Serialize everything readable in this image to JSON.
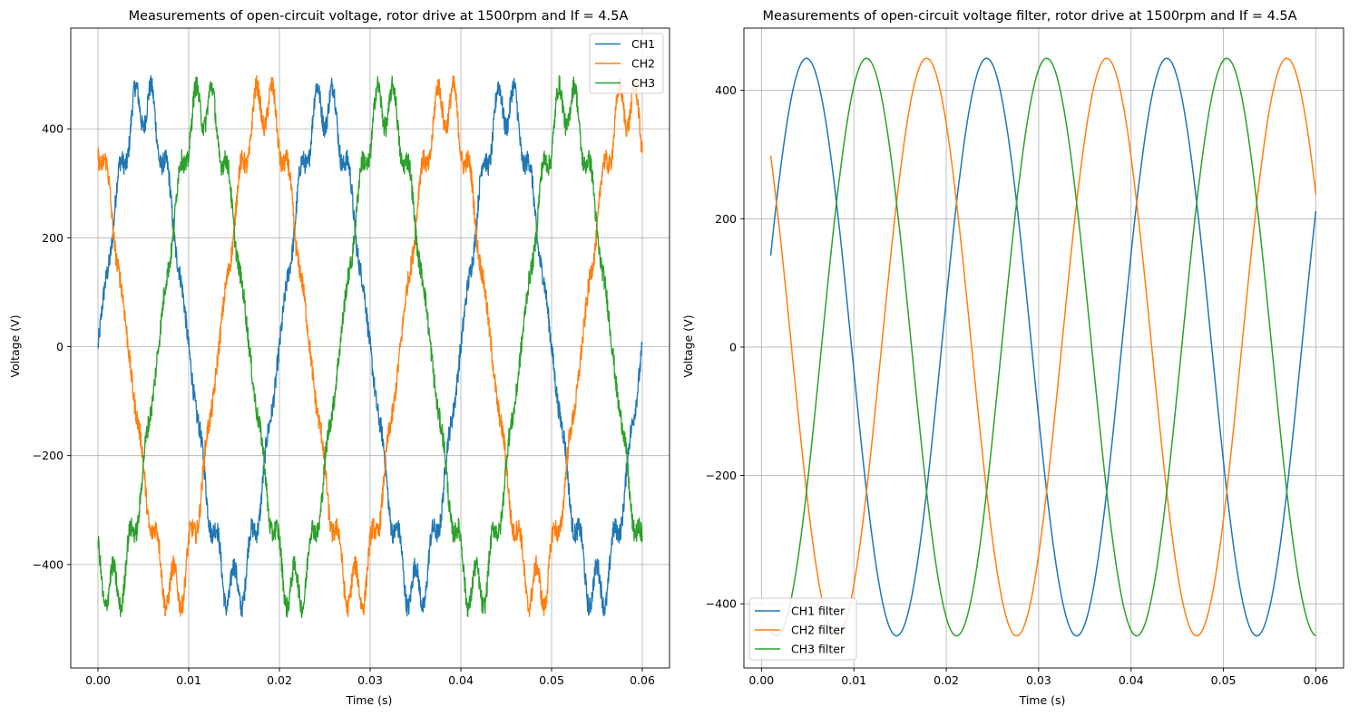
{
  "chart_data": [
    {
      "type": "line",
      "title": "Measurements of open-circuit voltage, rotor drive at 1500rpm and If = 4.5A",
      "xlabel": "Time (s)",
      "ylabel": "Voltage (V)",
      "xlim": [
        -0.003,
        0.063
      ],
      "ylim": [
        -590,
        585
      ],
      "xticks": [
        0.0,
        0.01,
        0.02,
        0.03,
        0.04,
        0.05,
        0.06
      ],
      "xtick_labels": [
        "0.00",
        "0.01",
        "0.02",
        "0.03",
        "0.04",
        "0.05",
        "0.06"
      ],
      "yticks": [
        -400,
        -200,
        0,
        200,
        400
      ],
      "ytick_labels": [
        "−400",
        "−200",
        "0",
        "200",
        "400"
      ],
      "grid": true,
      "legend_position": "upper right",
      "series": [
        {
          "name": "CH1",
          "color": "#1f77b4",
          "x_range": [
            0.0,
            0.06
          ],
          "frequency_hz": 50,
          "amplitude": 450,
          "peak": 525,
          "phase_deg": 0,
          "noisy": true
        },
        {
          "name": "CH2",
          "color": "#ff7f0e",
          "x_range": [
            0.0,
            0.06
          ],
          "frequency_hz": 50,
          "amplitude": 450,
          "peak": 520,
          "phase_deg": 120,
          "noisy": true
        },
        {
          "name": "CH3",
          "color": "#2ca02c",
          "x_range": [
            0.0,
            0.06
          ],
          "frequency_hz": 50,
          "amplitude": 450,
          "peak": 520,
          "phase_deg": -120,
          "noisy": true
        }
      ]
    },
    {
      "type": "line",
      "title": "Measurements of open-circuit voltage filter, rotor drive at 1500rpm and If = 4.5A",
      "xlabel": "Time (s)",
      "ylabel": "Voltage (V)",
      "xlim": [
        -0.0019,
        0.063
      ],
      "ylim": [
        -500,
        497
      ],
      "xticks": [
        0.0,
        0.01,
        0.02,
        0.03,
        0.04,
        0.05,
        0.06
      ],
      "xtick_labels": [
        "0.00",
        "0.01",
        "0.02",
        "0.03",
        "0.04",
        "0.05",
        "0.06"
      ],
      "yticks": [
        -400,
        -200,
        0,
        200,
        400
      ],
      "ytick_labels": [
        "−400",
        "−200",
        "0",
        "200",
        "400"
      ],
      "grid": true,
      "legend_position": "lower left",
      "series": [
        {
          "name": "CH1 filter",
          "color": "#1f77b4",
          "x_range": [
            0.001,
            0.06
          ],
          "frequency_hz": 51.3,
          "amplitude": 450,
          "phase_deg": 0,
          "noisy": false
        },
        {
          "name": "CH2 filter",
          "color": "#ff7f0e",
          "x_range": [
            0.001,
            0.06
          ],
          "frequency_hz": 51.3,
          "amplitude": 450,
          "phase_deg": 120,
          "noisy": false
        },
        {
          "name": "CH3 filter",
          "color": "#2ca02c",
          "x_range": [
            0.001,
            0.06
          ],
          "frequency_hz": 51.3,
          "amplitude": 450,
          "phase_deg": -120,
          "noisy": false
        }
      ]
    }
  ]
}
